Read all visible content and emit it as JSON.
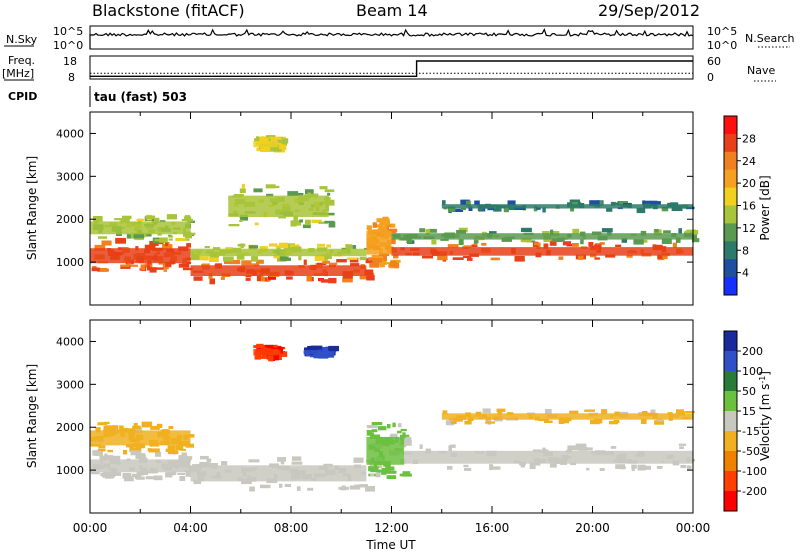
{
  "header": {
    "station": "Blackstone (fitACF)",
    "beam": "Beam 14",
    "date": "29/Sep/2012"
  },
  "noise_panel": {
    "left_label": "N.Sky",
    "left_top_tick": "10^5",
    "left_bottom_tick": "10^0",
    "right_label": "N.Search",
    "right_top_tick": "10^5",
    "right_bottom_tick": "10^0"
  },
  "freq_panel": {
    "left_label_line1": "Freq.",
    "left_label_line2": "[MHz]",
    "left_top_tick": "18",
    "left_bottom_tick": "8",
    "right_label": "Nave",
    "right_top_tick": "60",
    "right_bottom_tick": "0",
    "freq_value_mhz": 10.5,
    "nave_steps": [
      {
        "start_hour": 0,
        "end_hour": 13,
        "nave": 7
      },
      {
        "start_hour": 13,
        "end_hour": 24,
        "nave": 47
      }
    ]
  },
  "cpid": {
    "label": "CPID",
    "value": "tau (fast) 503"
  },
  "chart_data": [
    {
      "type": "heatmap",
      "name": "power",
      "ylabel": "Slant Range [km]",
      "ylim": [
        0,
        4500
      ],
      "xlim": [
        0,
        24
      ],
      "yticks": [
        1000,
        2000,
        3000,
        4000
      ],
      "colorbar_label": "Power [dB]",
      "colorbar_ticks": [
        4,
        8,
        12,
        16,
        20,
        24,
        28
      ],
      "colorbar_range": [
        0,
        32
      ],
      "colorbar_colors": [
        "#1530ff",
        "#1f4fa0",
        "#2d7a6a",
        "#5a9a50",
        "#a8c43a",
        "#f0d020",
        "#f5a020",
        "#f08020",
        "#e84018",
        "#ff1010"
      ],
      "regions": [
        {
          "t0": 0.0,
          "t1": 4.0,
          "r0": 800,
          "r1": 1500,
          "value": 26
        },
        {
          "t0": 0.0,
          "t1": 4.0,
          "r0": 1500,
          "r1": 2100,
          "value": 14
        },
        {
          "t0": 4.0,
          "t1": 11.0,
          "r0": 550,
          "r1": 1050,
          "value": 26
        },
        {
          "t0": 4.0,
          "t1": 11.0,
          "r0": 1050,
          "r1": 1400,
          "value": 15
        },
        {
          "t0": 5.5,
          "t1": 9.5,
          "r0": 1800,
          "r1": 2800,
          "value": 14
        },
        {
          "t0": 6.5,
          "t1": 7.5,
          "r0": 3600,
          "r1": 3900,
          "value": 16
        },
        {
          "t0": 11.0,
          "t1": 12.0,
          "r0": 900,
          "r1": 2000,
          "value": 22
        },
        {
          "t0": 12.0,
          "t1": 24.0,
          "r0": 1050,
          "r1": 1450,
          "value": 26
        },
        {
          "t0": 12.0,
          "t1": 24.0,
          "r0": 1450,
          "r1": 1750,
          "value": 12
        },
        {
          "t0": 14.0,
          "t1": 24.0,
          "r0": 2200,
          "r1": 2400,
          "value": 8
        }
      ]
    },
    {
      "type": "heatmap",
      "name": "velocity",
      "ylabel": "Slant Range [km]",
      "xlabel": "Time UT",
      "ylim": [
        0,
        4500
      ],
      "xlim": [
        0,
        24
      ],
      "yticks": [
        1000,
        2000,
        3000,
        4000
      ],
      "xticks": [
        "00:00",
        "04:00",
        "08:00",
        "12:00",
        "16:00",
        "20:00",
        "00:00"
      ],
      "colorbar_label": "Velocity [m s-1]",
      "colorbar_label_base": "Velocity [m s",
      "colorbar_label_sup": "-1",
      "colorbar_label_end": "]",
      "colorbar_ticks": [
        "200",
        "100",
        "50",
        "15",
        "-15",
        "-50",
        "-100",
        "-200"
      ],
      "colorbar_colors": [
        "#1a2a9a",
        "#3050c8",
        "#2a7a3a",
        "#6cc040",
        "#c8c8c0",
        "#f0b020",
        "#f08000",
        "#ff4000",
        "#ff0000"
      ],
      "regions": [
        {
          "t0": 0.0,
          "t1": 4.0,
          "r0": 800,
          "r1": 1400,
          "value": 0
        },
        {
          "t0": 0.0,
          "t1": 4.0,
          "r0": 1400,
          "r1": 2100,
          "value": -40
        },
        {
          "t0": 4.0,
          "t1": 11.0,
          "r0": 550,
          "r1": 1300,
          "value": 0
        },
        {
          "t0": 6.5,
          "t1": 7.5,
          "r0": 3600,
          "r1": 3900,
          "value": -150
        },
        {
          "t0": 8.5,
          "t1": 9.5,
          "r0": 3650,
          "r1": 3850,
          "value": 150
        },
        {
          "t0": 11.0,
          "t1": 12.5,
          "r0": 800,
          "r1": 2100,
          "value": 30
        },
        {
          "t0": 12.5,
          "t1": 24.0,
          "r0": 1000,
          "r1": 1600,
          "value": 0
        },
        {
          "t0": 14.0,
          "t1": 24.0,
          "r0": 2100,
          "r1": 2400,
          "value": -30
        }
      ]
    }
  ],
  "colors": {
    "noise_line": "#000000",
    "axis": "#000000"
  }
}
